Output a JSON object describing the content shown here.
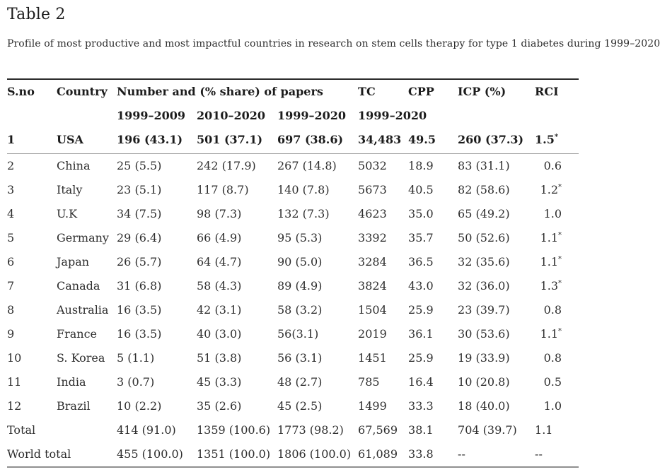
{
  "colors": {
    "title": "#1c1c1c",
    "text": "#2e2e2e",
    "rule_top": "#2b2b2b",
    "rule_mid": "#9c9c9c",
    "rule_bottom": "#8f8f8f"
  },
  "page": {
    "title": "Table 2",
    "caption": "Profile of most productive and most impactful countries in research on stem cells therapy for type 1 diabetes during 1999–2020"
  },
  "table": {
    "star_symbol": "*",
    "header": {
      "sno": "S.no",
      "country": "Country",
      "papers_group": "Number and (% share) of papers",
      "tc": "TC",
      "cpp": "CPP",
      "icp": "ICP (%)",
      "rci": "RCI",
      "sub_periods": [
        "1999–2009",
        "2010–2020",
        "1999–2020"
      ],
      "tc_period": "1999–2020"
    },
    "first_row": {
      "sno": "1",
      "country": "USA",
      "p1": "196 (43.1)",
      "p2": "501 (37.1)",
      "p3": "697 (38.6)",
      "tc": "34,483",
      "cpp": "49.5",
      "icp": "260 (37.3)",
      "rci": "1.5",
      "star": true
    },
    "rows": [
      {
        "sno": "2",
        "country": "China",
        "p1": "25 (5.5)",
        "p2": "242 (17.9)",
        "p3": "267 (14.8)",
        "tc": "5032",
        "cpp": "18.9",
        "icp": "83 (31.1)",
        "rci": "0.6",
        "star": false
      },
      {
        "sno": "3",
        "country": "Italy",
        "p1": "23 (5.1)",
        "p2": "117 (8.7)",
        "p3": "140 (7.8)",
        "tc": "5673",
        "cpp": "40.5",
        "icp": "82 (58.6)",
        "rci": "1.2",
        "star": true
      },
      {
        "sno": "4",
        "country": "U.K",
        "p1": "34 (7.5)",
        "p2": "98 (7.3)",
        "p3": "132 (7.3)",
        "tc": "4623",
        "cpp": "35.0",
        "icp": "65 (49.2)",
        "rci": "1.0",
        "star": false
      },
      {
        "sno": "5",
        "country": "Germany",
        "p1": "29 (6.4)",
        "p2": "66 (4.9)",
        "p3": "95 (5.3)",
        "tc": "3392",
        "cpp": "35.7",
        "icp": "50 (52.6)",
        "rci": "1.1",
        "star": true
      },
      {
        "sno": "6",
        "country": "Japan",
        "p1": "26 (5.7)",
        "p2": "64 (4.7)",
        "p3": "90 (5.0)",
        "tc": "3284",
        "cpp": "36.5",
        "icp": "32 (35.6)",
        "rci": "1.1",
        "star": true
      },
      {
        "sno": "7",
        "country": "Canada",
        "p1": "31 (6.8)",
        "p2": "58 (4.3)",
        "p3": "89 (4.9)",
        "tc": "3824",
        "cpp": "43.0",
        "icp": "32 (36.0)",
        "rci": "1.3",
        "star": true
      },
      {
        "sno": "8",
        "country": "Australia",
        "p1": "16 (3.5)",
        "p2": "42 (3.1)",
        "p3": "58 (3.2)",
        "tc": "1504",
        "cpp": "25.9",
        "icp": "23 (39.7)",
        "rci": "0.8",
        "star": false
      },
      {
        "sno": "9",
        "country": "France",
        "p1": "16 (3.5)",
        "p2": "40 (3.0)",
        "p3": "56(3.1)",
        "tc": "2019",
        "cpp": "36.1",
        "icp": "30 (53.6)",
        "rci": "1.1",
        "star": true
      },
      {
        "sno": "10",
        "country": "S. Korea",
        "p1": "5 (1.1)",
        "p2": "51 (3.8)",
        "p3": "56 (3.1)",
        "tc": "1451",
        "cpp": "25.9",
        "icp": "19 (33.9)",
        "rci": "0.8",
        "star": false
      },
      {
        "sno": "11",
        "country": "India",
        "p1": "3 (0.7)",
        "p2": "45 (3.3)",
        "p3": "48 (2.7)",
        "tc": "785",
        "cpp": "16.4",
        "icp": "10 (20.8)",
        "rci": "0.5",
        "star": false
      },
      {
        "sno": "12",
        "country": "Brazil",
        "p1": "10 (2.2)",
        "p2": "35 (2.6)",
        "p3": "45 (2.5)",
        "tc": "1499",
        "cpp": "33.3",
        "icp": "18 (40.0)",
        "rci": "1.0",
        "star": false
      }
    ],
    "total_row": {
      "label": "Total",
      "p1": "414 (91.0)",
      "p2": "1359 (100.6)",
      "p3": "1773 (98.2)",
      "tc": "67,569",
      "cpp": "38.1",
      "icp": "704 (39.7)",
      "rci": "1.1"
    },
    "world_row": {
      "label": "World total",
      "p1": "455 (100.0)",
      "p2": "1351 (100.0)",
      "p3": "1806 (100.0)",
      "tc": "61,089",
      "cpp": "33.8",
      "icp": "--",
      "rci": "--"
    }
  }
}
